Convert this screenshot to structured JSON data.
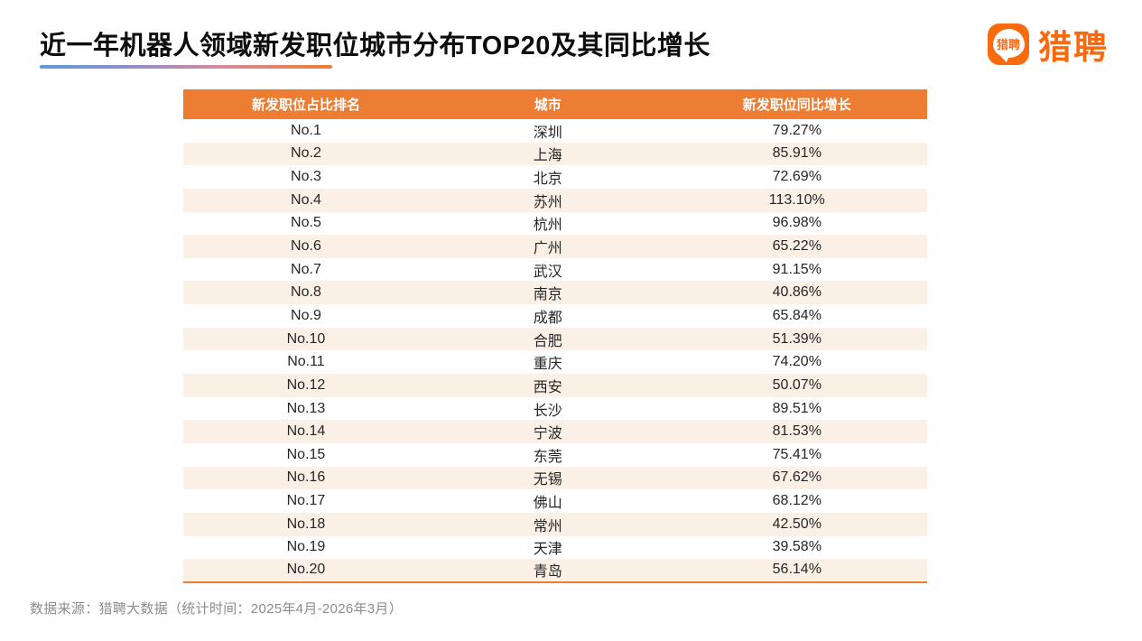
{
  "page": {
    "title": "近一年机器人领域新发职位城市分布TOP20及其同比增长",
    "source_note": "数据来源：猎聘大数据（统计时间：2025年4月-2026年3月）"
  },
  "logo": {
    "bubble_text": "猎聘",
    "wordmark": "猎聘"
  },
  "colors": {
    "brand_orange": "#f9690e",
    "table_header_orange": "#ec7d33",
    "table_alt_row": "#fbf0e6",
    "table_bottom_border": "#ed7d31",
    "underline_gradient_start": "#5b9bd5",
    "underline_gradient_end": "#ed7d31",
    "body_text": "#262626",
    "note_gray": "#8c8c8c"
  },
  "chart_data": {
    "type": "table",
    "title": "近一年机器人领域新发职位城市分布TOP20及其同比增长",
    "columns": [
      "新发职位占比排名",
      "城市",
      "新发职位同比增长"
    ],
    "rows": [
      [
        "No.1",
        "深圳",
        "79.27%"
      ],
      [
        "No.2",
        "上海",
        "85.91%"
      ],
      [
        "No.3",
        "北京",
        "72.69%"
      ],
      [
        "No.4",
        "苏州",
        "113.10%"
      ],
      [
        "No.5",
        "杭州",
        "96.98%"
      ],
      [
        "No.6",
        "广州",
        "65.22%"
      ],
      [
        "No.7",
        "武汉",
        "91.15%"
      ],
      [
        "No.8",
        "南京",
        "40.86%"
      ],
      [
        "No.9",
        "成都",
        "65.84%"
      ],
      [
        "No.10",
        "合肥",
        "51.39%"
      ],
      [
        "No.11",
        "重庆",
        "74.20%"
      ],
      [
        "No.12",
        "西安",
        "50.07%"
      ],
      [
        "No.13",
        "长沙",
        "89.51%"
      ],
      [
        "No.14",
        "宁波",
        "81.53%"
      ],
      [
        "No.15",
        "东莞",
        "75.41%"
      ],
      [
        "No.16",
        "无锡",
        "67.62%"
      ],
      [
        "No.17",
        "佛山",
        "68.12%"
      ],
      [
        "No.18",
        "常州",
        "42.50%"
      ],
      [
        "No.19",
        "天津",
        "39.58%"
      ],
      [
        "No.20",
        "青岛",
        "56.14%"
      ]
    ],
    "layout": {
      "alternating_rows": true,
      "header_background": "#ec7d33",
      "column_alignment": [
        "center",
        "center",
        "center"
      ]
    }
  }
}
